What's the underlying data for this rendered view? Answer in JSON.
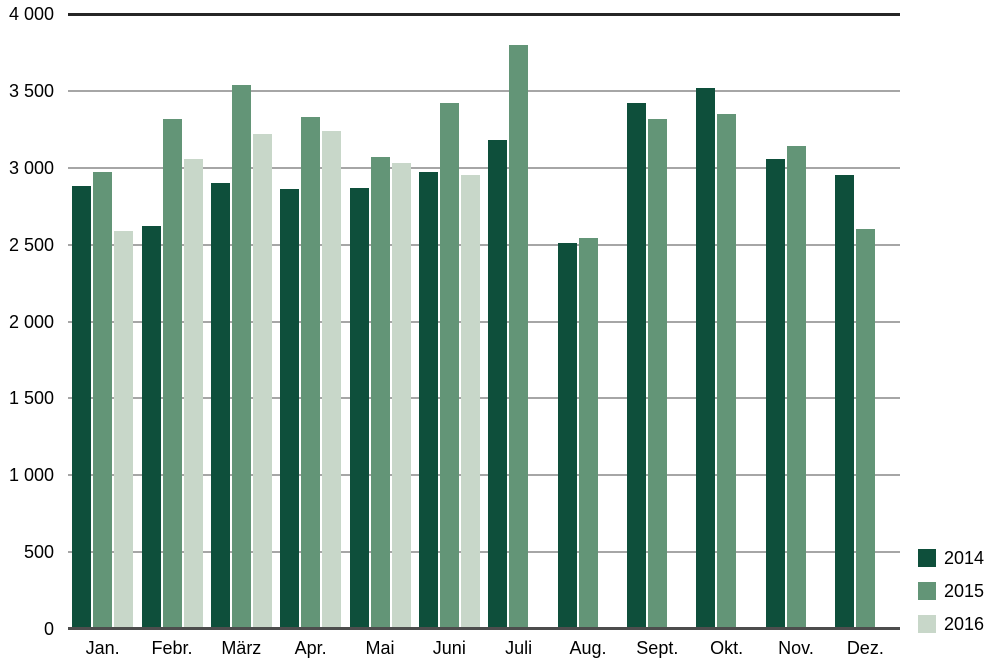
{
  "chart_data": {
    "type": "bar",
    "title": "",
    "categories": [
      "Jan.",
      "Febr.",
      "März",
      "Apr.",
      "Mai",
      "Juni",
      "Juli",
      "Aug.",
      "Sept.",
      "Okt.",
      "Nov.",
      "Dez."
    ],
    "series": [
      {
        "name": "2014",
        "color": "#0E4F3B",
        "values": [
          2880,
          2620,
          2900,
          2860,
          2870,
          2970,
          3180,
          2510,
          3420,
          3520,
          3060,
          2950
        ]
      },
      {
        "name": "2015",
        "color": "#639577",
        "values": [
          2970,
          3320,
          3540,
          3330,
          3070,
          3420,
          3800,
          2540,
          3320,
          3350,
          3140,
          2600
        ]
      },
      {
        "name": "2016",
        "color": "#C8D7C9",
        "values": [
          2590,
          3060,
          3220,
          3240,
          3030,
          2950,
          null,
          null,
          null,
          null,
          null,
          null
        ]
      }
    ],
    "xlabel": "",
    "ylabel": "",
    "ylim": [
      0,
      4000
    ],
    "ytick_step": 500,
    "ytick_labels": [
      "0",
      "500",
      "1 000",
      "1 500",
      "2 000",
      "2 500",
      "3 000",
      "3 500",
      "4 000"
    ],
    "grid": "horizontal",
    "legend_position": "bottom-right"
  },
  "colors": {
    "background": "#FFFFFF",
    "gridline": "#A6A6A6",
    "top_border": "#262626",
    "baseline": "#4D4D4D",
    "text": "#000000"
  }
}
